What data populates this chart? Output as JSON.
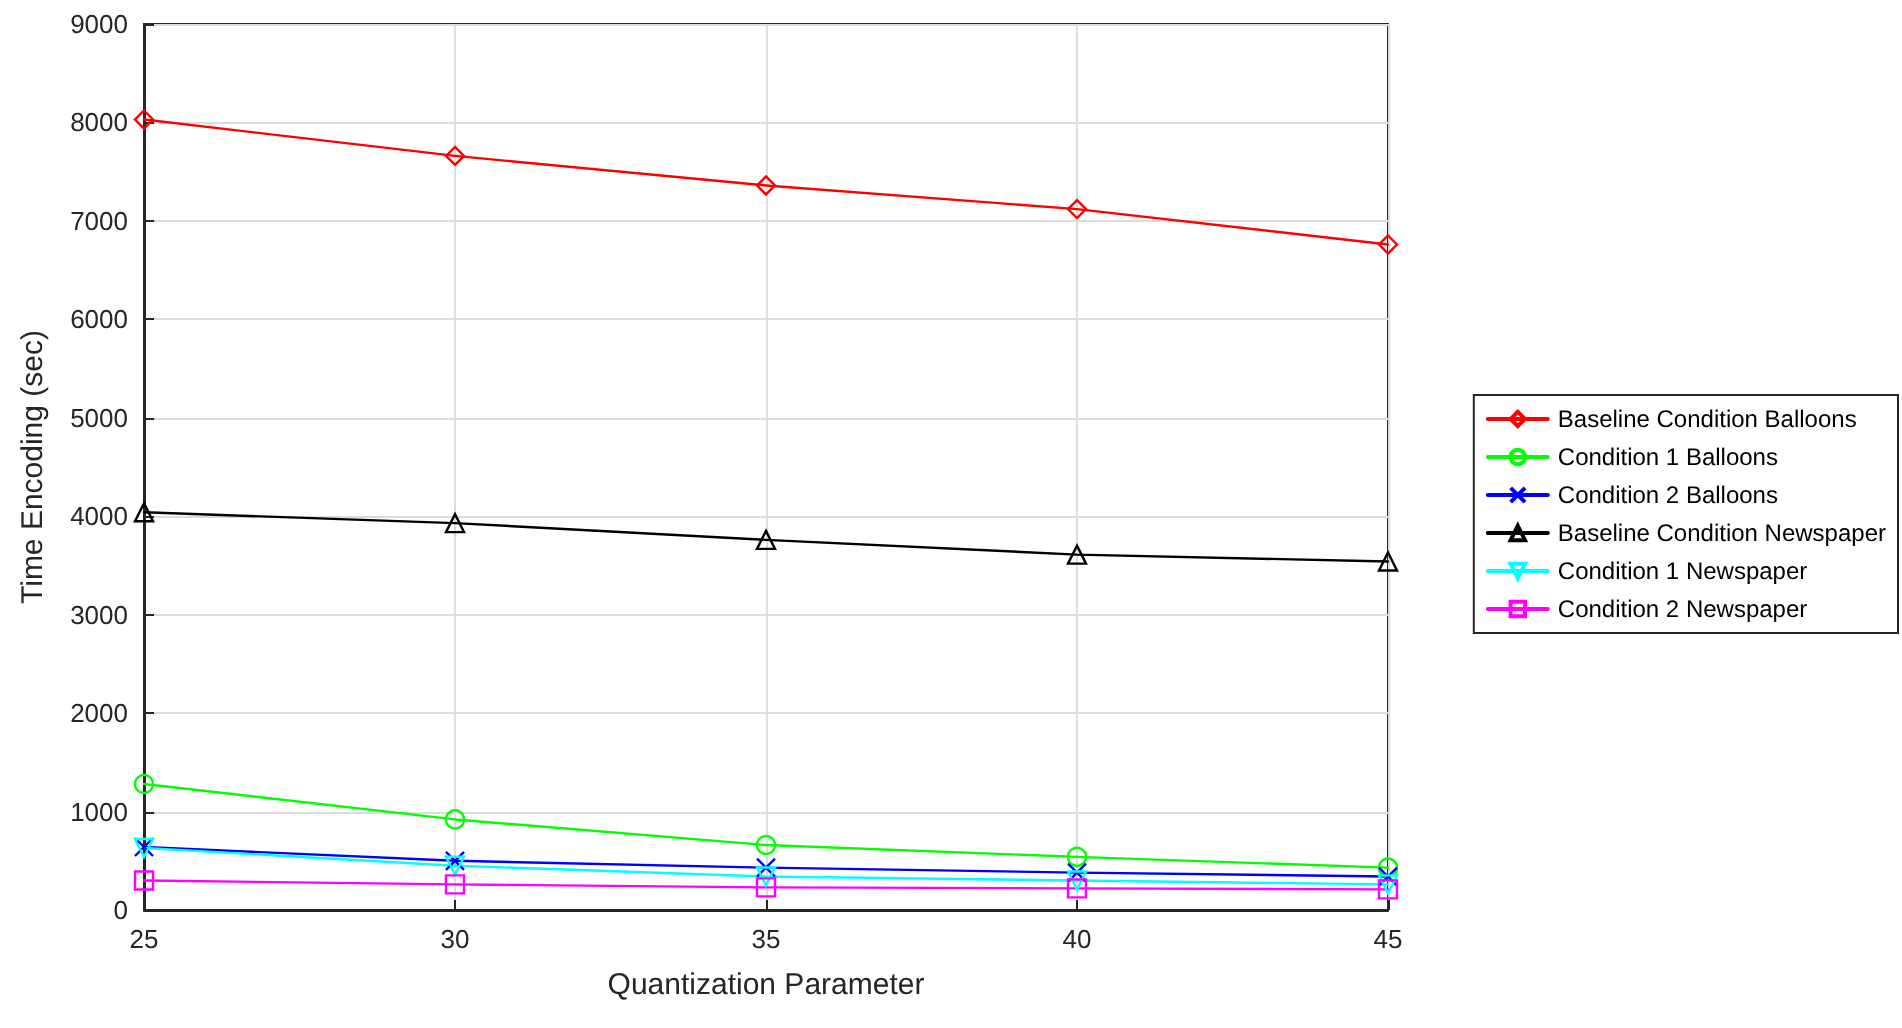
{
  "chart_data": {
    "type": "line",
    "xlabel": "Quantization Parameter",
    "ylabel": "Time Encoding (sec)",
    "x": [
      25,
      30,
      35,
      40,
      45
    ],
    "xlim": [
      25,
      45
    ],
    "xticks": [
      25,
      30,
      35,
      40,
      45
    ],
    "ylim": [
      0,
      9000
    ],
    "yticks": [
      0,
      1000,
      2000,
      3000,
      4000,
      5000,
      6000,
      7000,
      8000,
      9000
    ],
    "grid": true,
    "legend": "right",
    "series": [
      {
        "name": "Baseline Condition Balloons",
        "color": "#ff0000",
        "marker": "diamond",
        "values": [
          8030,
          7660,
          7360,
          7120,
          6760
        ]
      },
      {
        "name": "Condition 1 Balloons",
        "color": "#00ff00",
        "marker": "circle",
        "values": [
          1280,
          920,
          660,
          540,
          430
        ]
      },
      {
        "name": "Condition 2 Balloons",
        "color": "#0000ff",
        "marker": "cross",
        "values": [
          640,
          500,
          430,
          380,
          340
        ]
      },
      {
        "name": "Baseline Condition Newspaper",
        "color": "#000000",
        "marker": "triangle",
        "values": [
          4040,
          3930,
          3760,
          3610,
          3540
        ]
      },
      {
        "name": "Condition 1 Newspaper",
        "color": "#00ffff",
        "marker": "triangle-down",
        "values": [
          630,
          450,
          340,
          300,
          260
        ]
      },
      {
        "name": "Condition 2 Newspaper",
        "color": "#ff00ff",
        "marker": "square",
        "values": [
          300,
          260,
          230,
          220,
          210
        ]
      }
    ]
  }
}
